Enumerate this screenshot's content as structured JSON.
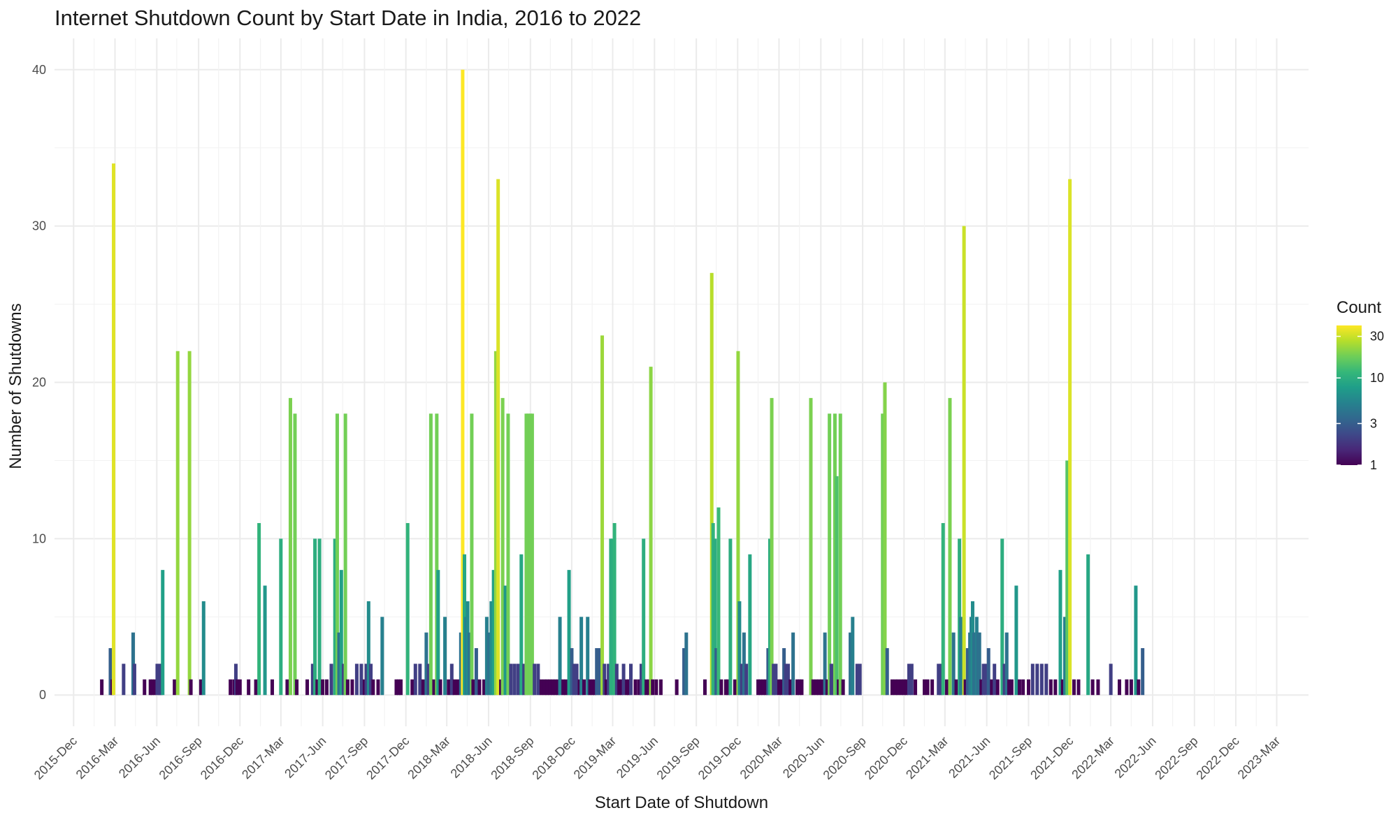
{
  "chart_data": {
    "type": "bar",
    "title": "Internet Shutdown Count by Start Date in India, 2016 to 2022",
    "xlabel": "Start Date of Shutdown",
    "ylabel": "Number of Shutdowns",
    "x_tick_labels": [
      "2015-Dec",
      "2016-Mar",
      "2016-Jun",
      "2016-Sep",
      "2016-Dec",
      "2017-Mar",
      "2017-Jun",
      "2017-Sep",
      "2017-Dec",
      "2018-Mar",
      "2018-Jun",
      "2018-Sep",
      "2018-Dec",
      "2019-Mar",
      "2019-Jun",
      "2019-Sep",
      "2019-Dec",
      "2020-Mar",
      "2020-Jun",
      "2020-Sep",
      "2020-Dec",
      "2021-Mar",
      "2021-Jun",
      "2021-Sep",
      "2021-Dec",
      "2022-Mar",
      "2022-Jun",
      "2022-Sep",
      "2022-Dec",
      "2023-Mar"
    ],
    "y_ticks": [
      0,
      10,
      20,
      30,
      40
    ],
    "ylim": [
      -2,
      42
    ],
    "xlim": [
      "2015-10-20",
      "2023-05-10"
    ],
    "grid": true,
    "legend": {
      "title": "Count",
      "position": "right",
      "scale": "log",
      "ticks": [
        1,
        3,
        10,
        30
      ],
      "colors": [
        "#440154",
        "#482878",
        "#3e4989",
        "#31688e",
        "#26828e",
        "#1f9e89",
        "#35b779",
        "#6ece58",
        "#b5de2b",
        "#fde725"
      ]
    },
    "values": [
      [
        "2016-02-01",
        1
      ],
      [
        "2016-02-20",
        3
      ],
      [
        "2016-02-24",
        1
      ],
      [
        "2016-02-27",
        34
      ],
      [
        "2016-03-20",
        2
      ],
      [
        "2016-04-10",
        4
      ],
      [
        "2016-04-13",
        2
      ],
      [
        "2016-05-05",
        1
      ],
      [
        "2016-05-18",
        1
      ],
      [
        "2016-05-22",
        1
      ],
      [
        "2016-05-28",
        1
      ],
      [
        "2016-06-02",
        2
      ],
      [
        "2016-06-06",
        2
      ],
      [
        "2016-06-10",
        2
      ],
      [
        "2016-06-14",
        8
      ],
      [
        "2016-07-10",
        1
      ],
      [
        "2016-07-17",
        22
      ],
      [
        "2016-08-12",
        22
      ],
      [
        "2016-08-15",
        1
      ],
      [
        "2016-09-06",
        1
      ],
      [
        "2016-09-12",
        6
      ],
      [
        "2016-11-10",
        1
      ],
      [
        "2016-11-18",
        1
      ],
      [
        "2016-11-22",
        2
      ],
      [
        "2016-11-25",
        1
      ],
      [
        "2016-12-01",
        1
      ],
      [
        "2016-12-20",
        1
      ],
      [
        "2017-01-05",
        1
      ],
      [
        "2017-01-12",
        11
      ],
      [
        "2017-01-25",
        7
      ],
      [
        "2017-02-10",
        1
      ],
      [
        "2017-03-01",
        10
      ],
      [
        "2017-03-15",
        1
      ],
      [
        "2017-03-22",
        19
      ],
      [
        "2017-04-01",
        18
      ],
      [
        "2017-04-05",
        1
      ],
      [
        "2017-04-28",
        1
      ],
      [
        "2017-05-10",
        2
      ],
      [
        "2017-05-15",
        10
      ],
      [
        "2017-05-20",
        1
      ],
      [
        "2017-05-25",
        10
      ],
      [
        "2017-06-01",
        1
      ],
      [
        "2017-06-10",
        1
      ],
      [
        "2017-06-20",
        2
      ],
      [
        "2017-06-28",
        10
      ],
      [
        "2017-07-03",
        18
      ],
      [
        "2017-07-07",
        4
      ],
      [
        "2017-07-12",
        8
      ],
      [
        "2017-07-17",
        2
      ],
      [
        "2017-07-21",
        18
      ],
      [
        "2017-07-26",
        1
      ],
      [
        "2017-08-05",
        1
      ],
      [
        "2017-08-15",
        2
      ],
      [
        "2017-08-25",
        2
      ],
      [
        "2017-09-01",
        1
      ],
      [
        "2017-09-05",
        2
      ],
      [
        "2017-09-10",
        6
      ],
      [
        "2017-09-15",
        2
      ],
      [
        "2017-09-20",
        1
      ],
      [
        "2017-10-01",
        1
      ],
      [
        "2017-10-10",
        5
      ],
      [
        "2017-11-10",
        1
      ],
      [
        "2017-11-15",
        1
      ],
      [
        "2017-11-20",
        1
      ],
      [
        "2017-12-05",
        11
      ],
      [
        "2017-12-15",
        1
      ],
      [
        "2017-12-22",
        2
      ],
      [
        "2018-01-01",
        2
      ],
      [
        "2018-01-08",
        1
      ],
      [
        "2018-01-15",
        4
      ],
      [
        "2018-01-20",
        2
      ],
      [
        "2018-01-25",
        18
      ],
      [
        "2018-02-01",
        1
      ],
      [
        "2018-02-07",
        18
      ],
      [
        "2018-02-10",
        8
      ],
      [
        "2018-02-15",
        1
      ],
      [
        "2018-02-25",
        5
      ],
      [
        "2018-03-05",
        1
      ],
      [
        "2018-03-12",
        2
      ],
      [
        "2018-03-18",
        1
      ],
      [
        "2018-03-25",
        1
      ],
      [
        "2018-04-01",
        4
      ],
      [
        "2018-04-05",
        40
      ],
      [
        "2018-04-09",
        9
      ],
      [
        "2018-04-12",
        5
      ],
      [
        "2018-04-16",
        6
      ],
      [
        "2018-04-20",
        4
      ],
      [
        "2018-04-25",
        18
      ],
      [
        "2018-04-28",
        1
      ],
      [
        "2018-05-05",
        3
      ],
      [
        "2018-05-12",
        1
      ],
      [
        "2018-05-22",
        1
      ],
      [
        "2018-05-28",
        5
      ],
      [
        "2018-06-02",
        4
      ],
      [
        "2018-06-07",
        6
      ],
      [
        "2018-06-12",
        8
      ],
      [
        "2018-06-17",
        22
      ],
      [
        "2018-06-22",
        33
      ],
      [
        "2018-06-28",
        1
      ],
      [
        "2018-07-02",
        19
      ],
      [
        "2018-07-08",
        7
      ],
      [
        "2018-07-14",
        18
      ],
      [
        "2018-07-20",
        2
      ],
      [
        "2018-07-28",
        2
      ],
      [
        "2018-08-05",
        2
      ],
      [
        "2018-08-12",
        9
      ],
      [
        "2018-08-18",
        2
      ],
      [
        "2018-08-23",
        18
      ],
      [
        "2018-08-27",
        18
      ],
      [
        "2018-09-01",
        18
      ],
      [
        "2018-09-05",
        18
      ],
      [
        "2018-09-10",
        2
      ],
      [
        "2018-09-18",
        2
      ],
      [
        "2018-09-25",
        1
      ],
      [
        "2018-10-02",
        1
      ],
      [
        "2018-10-08",
        1
      ],
      [
        "2018-10-14",
        1
      ],
      [
        "2018-10-20",
        1
      ],
      [
        "2018-10-26",
        1
      ],
      [
        "2018-11-01",
        1
      ],
      [
        "2018-11-05",
        5
      ],
      [
        "2018-11-12",
        1
      ],
      [
        "2018-11-18",
        1
      ],
      [
        "2018-11-25",
        8
      ],
      [
        "2018-12-01",
        3
      ],
      [
        "2018-12-06",
        2
      ],
      [
        "2018-12-12",
        2
      ],
      [
        "2018-12-18",
        1
      ],
      [
        "2018-12-22",
        5
      ],
      [
        "2018-12-28",
        1
      ],
      [
        "2019-01-05",
        5
      ],
      [
        "2019-01-10",
        1
      ],
      [
        "2019-01-15",
        1
      ],
      [
        "2019-01-20",
        1
      ],
      [
        "2019-01-25",
        3
      ],
      [
        "2019-02-01",
        3
      ],
      [
        "2019-02-06",
        23
      ],
      [
        "2019-02-11",
        2
      ],
      [
        "2019-02-15",
        1
      ],
      [
        "2019-02-20",
        2
      ],
      [
        "2019-02-25",
        10
      ],
      [
        "2019-03-01",
        10
      ],
      [
        "2019-03-05",
        11
      ],
      [
        "2019-03-10",
        2
      ],
      [
        "2019-03-15",
        1
      ],
      [
        "2019-03-20",
        1
      ],
      [
        "2019-03-25",
        2
      ],
      [
        "2019-04-01",
        1
      ],
      [
        "2019-04-05",
        1
      ],
      [
        "2019-04-10",
        2
      ],
      [
        "2019-04-20",
        1
      ],
      [
        "2019-04-28",
        1
      ],
      [
        "2019-05-03",
        2
      ],
      [
        "2019-05-08",
        10
      ],
      [
        "2019-05-14",
        1
      ],
      [
        "2019-05-20",
        1
      ],
      [
        "2019-05-24",
        21
      ],
      [
        "2019-05-28",
        1
      ],
      [
        "2019-06-05",
        1
      ],
      [
        "2019-06-15",
        1
      ],
      [
        "2019-07-20",
        1
      ],
      [
        "2019-08-05",
        3
      ],
      [
        "2019-08-10",
        4
      ],
      [
        "2019-09-20",
        1
      ],
      [
        "2019-10-05",
        27
      ],
      [
        "2019-10-08",
        11
      ],
      [
        "2019-10-12",
        10
      ],
      [
        "2019-10-15",
        3
      ],
      [
        "2019-10-20",
        12
      ],
      [
        "2019-10-26",
        1
      ],
      [
        "2019-11-05",
        1
      ],
      [
        "2019-11-10",
        1
      ],
      [
        "2019-11-15",
        10
      ],
      [
        "2019-11-25",
        1
      ],
      [
        "2019-12-02",
        22
      ],
      [
        "2019-12-05",
        6
      ],
      [
        "2019-12-10",
        2
      ],
      [
        "2019-12-15",
        4
      ],
      [
        "2019-12-20",
        2
      ],
      [
        "2019-12-28",
        9
      ],
      [
        "2020-01-15",
        1
      ],
      [
        "2020-01-20",
        1
      ],
      [
        "2020-01-26",
        1
      ],
      [
        "2020-02-01",
        1
      ],
      [
        "2020-02-06",
        3
      ],
      [
        "2020-02-10",
        10
      ],
      [
        "2020-02-14",
        19
      ],
      [
        "2020-02-18",
        2
      ],
      [
        "2020-02-23",
        2
      ],
      [
        "2020-03-01",
        1
      ],
      [
        "2020-03-06",
        1
      ],
      [
        "2020-03-12",
        3
      ],
      [
        "2020-03-16",
        2
      ],
      [
        "2020-03-21",
        2
      ],
      [
        "2020-03-26",
        1
      ],
      [
        "2020-04-01",
        4
      ],
      [
        "2020-04-10",
        1
      ],
      [
        "2020-04-15",
        1
      ],
      [
        "2020-04-20",
        1
      ],
      [
        "2020-05-10",
        19
      ],
      [
        "2020-05-15",
        1
      ],
      [
        "2020-05-22",
        1
      ],
      [
        "2020-05-28",
        1
      ],
      [
        "2020-06-03",
        1
      ],
      [
        "2020-06-10",
        4
      ],
      [
        "2020-06-15",
        1
      ],
      [
        "2020-06-20",
        18
      ],
      [
        "2020-06-24",
        2
      ],
      [
        "2020-06-28",
        2
      ],
      [
        "2020-07-02",
        18
      ],
      [
        "2020-07-06",
        14
      ],
      [
        "2020-07-10",
        1
      ],
      [
        "2020-07-14",
        18
      ],
      [
        "2020-07-20",
        1
      ],
      [
        "2020-08-05",
        4
      ],
      [
        "2020-08-10",
        5
      ],
      [
        "2020-08-20",
        2
      ],
      [
        "2020-08-26",
        2
      ],
      [
        "2020-10-15",
        18
      ],
      [
        "2020-10-20",
        20
      ],
      [
        "2020-10-25",
        3
      ],
      [
        "2020-11-05",
        1
      ],
      [
        "2020-11-12",
        1
      ],
      [
        "2020-11-18",
        1
      ],
      [
        "2020-11-25",
        1
      ],
      [
        "2020-12-01",
        1
      ],
      [
        "2020-12-06",
        1
      ],
      [
        "2020-12-12",
        2
      ],
      [
        "2020-12-18",
        2
      ],
      [
        "2020-12-26",
        1
      ],
      [
        "2021-01-15",
        1
      ],
      [
        "2021-01-22",
        1
      ],
      [
        "2021-02-01",
        1
      ],
      [
        "2021-02-15",
        2
      ],
      [
        "2021-02-20",
        2
      ],
      [
        "2021-02-25",
        11
      ],
      [
        "2021-03-05",
        1
      ],
      [
        "2021-03-12",
        19
      ],
      [
        "2021-03-20",
        4
      ],
      [
        "2021-03-26",
        1
      ],
      [
        "2021-04-02",
        10
      ],
      [
        "2021-04-05",
        5
      ],
      [
        "2021-04-12",
        30
      ],
      [
        "2021-04-15",
        1
      ],
      [
        "2021-04-20",
        3
      ],
      [
        "2021-04-25",
        4
      ],
      [
        "2021-04-28",
        5
      ],
      [
        "2021-05-01",
        6
      ],
      [
        "2021-05-04",
        4
      ],
      [
        "2021-05-07",
        4
      ],
      [
        "2021-05-10",
        5
      ],
      [
        "2021-05-13",
        4
      ],
      [
        "2021-05-16",
        4
      ],
      [
        "2021-05-20",
        1
      ],
      [
        "2021-05-25",
        2
      ],
      [
        "2021-05-30",
        2
      ],
      [
        "2021-06-05",
        3
      ],
      [
        "2021-06-12",
        1
      ],
      [
        "2021-06-18",
        2
      ],
      [
        "2021-06-25",
        1
      ],
      [
        "2021-07-05",
        10
      ],
      [
        "2021-07-10",
        2
      ],
      [
        "2021-07-15",
        4
      ],
      [
        "2021-07-20",
        1
      ],
      [
        "2021-07-26",
        1
      ],
      [
        "2021-08-05",
        7
      ],
      [
        "2021-08-12",
        1
      ],
      [
        "2021-08-20",
        1
      ],
      [
        "2021-09-01",
        1
      ],
      [
        "2021-09-10",
        2
      ],
      [
        "2021-09-20",
        2
      ],
      [
        "2021-09-30",
        2
      ],
      [
        "2021-10-10",
        2
      ],
      [
        "2021-10-20",
        1
      ],
      [
        "2021-10-30",
        1
      ],
      [
        "2021-11-10",
        8
      ],
      [
        "2021-11-15",
        1
      ],
      [
        "2021-11-20",
        5
      ],
      [
        "2021-11-25",
        15
      ],
      [
        "2021-12-01",
        33
      ],
      [
        "2021-12-10",
        1
      ],
      [
        "2021-12-20",
        1
      ],
      [
        "2022-01-10",
        9
      ],
      [
        "2022-01-20",
        1
      ],
      [
        "2022-02-01",
        1
      ],
      [
        "2022-03-01",
        2
      ],
      [
        "2022-03-20",
        1
      ],
      [
        "2022-04-05",
        1
      ],
      [
        "2022-04-15",
        1
      ],
      [
        "2022-04-25",
        7
      ],
      [
        "2022-05-01",
        1
      ],
      [
        "2022-05-10",
        3
      ]
    ]
  }
}
